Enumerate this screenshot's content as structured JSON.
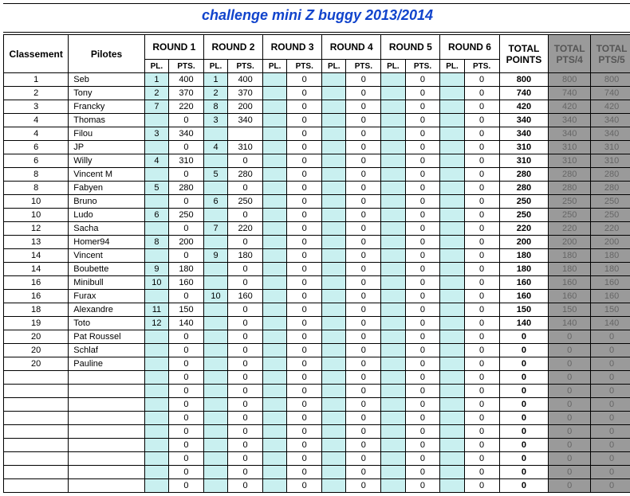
{
  "title": "challenge mini Z buggy 2013/2014",
  "headers": {
    "classement": "Classement",
    "pilotes": "Pilotes",
    "rounds": [
      "ROUND 1",
      "ROUND 2",
      "ROUND 3",
      "ROUND 4",
      "ROUND 5",
      "ROUND 6"
    ],
    "pl": "PL.",
    "pts": "PTS.",
    "total": "TOTAL POINTS",
    "grey1": "TOTAL PTS/4",
    "grey2": "TOTAL PTS/5"
  },
  "rows": [
    {
      "rank": "1",
      "pilot": "Seb",
      "r": [
        [
          "1",
          "400"
        ],
        [
          "1",
          "400"
        ],
        [
          "",
          "0"
        ],
        [
          "",
          "0"
        ],
        [
          "",
          "0"
        ],
        [
          "",
          "0"
        ]
      ],
      "total": "800",
      "g1": "800",
      "g2": "800"
    },
    {
      "rank": "2",
      "pilot": "Tony",
      "r": [
        [
          "2",
          "370"
        ],
        [
          "2",
          "370"
        ],
        [
          "",
          "0"
        ],
        [
          "",
          "0"
        ],
        [
          "",
          "0"
        ],
        [
          "",
          "0"
        ]
      ],
      "total": "740",
      "g1": "740",
      "g2": "740"
    },
    {
      "rank": "3",
      "pilot": "Francky",
      "r": [
        [
          "7",
          "220"
        ],
        [
          "8",
          "200"
        ],
        [
          "",
          "0"
        ],
        [
          "",
          "0"
        ],
        [
          "",
          "0"
        ],
        [
          "",
          "0"
        ]
      ],
      "total": "420",
      "g1": "420",
      "g2": "420"
    },
    {
      "rank": "4",
      "pilot": "Thomas",
      "r": [
        [
          "",
          "0"
        ],
        [
          "3",
          "340"
        ],
        [
          "",
          "0"
        ],
        [
          "",
          "0"
        ],
        [
          "",
          "0"
        ],
        [
          "",
          "0"
        ]
      ],
      "total": "340",
      "g1": "340",
      "g2": "340"
    },
    {
      "rank": "4",
      "pilot": "Filou",
      "r": [
        [
          "3",
          "340"
        ],
        [
          "",
          ""
        ],
        [
          "",
          "0"
        ],
        [
          "",
          "0"
        ],
        [
          "",
          "0"
        ],
        [
          "",
          "0"
        ]
      ],
      "total": "340",
      "g1": "340",
      "g2": "340"
    },
    {
      "rank": "6",
      "pilot": "JP",
      "r": [
        [
          "",
          "0"
        ],
        [
          "4",
          "310"
        ],
        [
          "",
          "0"
        ],
        [
          "",
          "0"
        ],
        [
          "",
          "0"
        ],
        [
          "",
          "0"
        ]
      ],
      "total": "310",
      "g1": "310",
      "g2": "310"
    },
    {
      "rank": "6",
      "pilot": "Willy",
      "r": [
        [
          "4",
          "310"
        ],
        [
          "",
          "0"
        ],
        [
          "",
          "0"
        ],
        [
          "",
          "0"
        ],
        [
          "",
          "0"
        ],
        [
          "",
          "0"
        ]
      ],
      "total": "310",
      "g1": "310",
      "g2": "310"
    },
    {
      "rank": "8",
      "pilot": "Vincent M",
      "r": [
        [
          "",
          "0"
        ],
        [
          "5",
          "280"
        ],
        [
          "",
          "0"
        ],
        [
          "",
          "0"
        ],
        [
          "",
          "0"
        ],
        [
          "",
          "0"
        ]
      ],
      "total": "280",
      "g1": "280",
      "g2": "280"
    },
    {
      "rank": "8",
      "pilot": "Fabyen",
      "r": [
        [
          "5",
          "280"
        ],
        [
          "",
          "0"
        ],
        [
          "",
          "0"
        ],
        [
          "",
          "0"
        ],
        [
          "",
          "0"
        ],
        [
          "",
          "0"
        ]
      ],
      "total": "280",
      "g1": "280",
      "g2": "280"
    },
    {
      "rank": "10",
      "pilot": "Bruno",
      "r": [
        [
          "",
          "0"
        ],
        [
          "6",
          "250"
        ],
        [
          "",
          "0"
        ],
        [
          "",
          "0"
        ],
        [
          "",
          "0"
        ],
        [
          "",
          "0"
        ]
      ],
      "total": "250",
      "g1": "250",
      "g2": "250"
    },
    {
      "rank": "10",
      "pilot": "Ludo",
      "r": [
        [
          "6",
          "250"
        ],
        [
          "",
          "0"
        ],
        [
          "",
          "0"
        ],
        [
          "",
          "0"
        ],
        [
          "",
          "0"
        ],
        [
          "",
          "0"
        ]
      ],
      "total": "250",
      "g1": "250",
      "g2": "250"
    },
    {
      "rank": "12",
      "pilot": "Sacha",
      "r": [
        [
          "",
          "0"
        ],
        [
          "7",
          "220"
        ],
        [
          "",
          "0"
        ],
        [
          "",
          "0"
        ],
        [
          "",
          "0"
        ],
        [
          "",
          "0"
        ]
      ],
      "total": "220",
      "g1": "220",
      "g2": "220"
    },
    {
      "rank": "13",
      "pilot": "Homer94",
      "r": [
        [
          "8",
          "200"
        ],
        [
          "",
          "0"
        ],
        [
          "",
          "0"
        ],
        [
          "",
          "0"
        ],
        [
          "",
          "0"
        ],
        [
          "",
          "0"
        ]
      ],
      "total": "200",
      "g1": "200",
      "g2": "200"
    },
    {
      "rank": "14",
      "pilot": "Vincent",
      "r": [
        [
          "",
          "0"
        ],
        [
          "9",
          "180"
        ],
        [
          "",
          "0"
        ],
        [
          "",
          "0"
        ],
        [
          "",
          "0"
        ],
        [
          "",
          "0"
        ]
      ],
      "total": "180",
      "g1": "180",
      "g2": "180"
    },
    {
      "rank": "14",
      "pilot": "Boubette",
      "r": [
        [
          "9",
          "180"
        ],
        [
          "",
          "0"
        ],
        [
          "",
          "0"
        ],
        [
          "",
          "0"
        ],
        [
          "",
          "0"
        ],
        [
          "",
          "0"
        ]
      ],
      "total": "180",
      "g1": "180",
      "g2": "180"
    },
    {
      "rank": "16",
      "pilot": "Minibull",
      "r": [
        [
          "10",
          "160"
        ],
        [
          "",
          "0"
        ],
        [
          "",
          "0"
        ],
        [
          "",
          "0"
        ],
        [
          "",
          "0"
        ],
        [
          "",
          "0"
        ]
      ],
      "total": "160",
      "g1": "160",
      "g2": "160"
    },
    {
      "rank": "16",
      "pilot": "Furax",
      "r": [
        [
          "",
          "0"
        ],
        [
          "10",
          "160"
        ],
        [
          "",
          "0"
        ],
        [
          "",
          "0"
        ],
        [
          "",
          "0"
        ],
        [
          "",
          "0"
        ]
      ],
      "total": "160",
      "g1": "160",
      "g2": "160"
    },
    {
      "rank": "18",
      "pilot": "Alexandre",
      "r": [
        [
          "11",
          "150"
        ],
        [
          "",
          "0"
        ],
        [
          "",
          "0"
        ],
        [
          "",
          "0"
        ],
        [
          "",
          "0"
        ],
        [
          "",
          "0"
        ]
      ],
      "total": "150",
      "g1": "150",
      "g2": "150"
    },
    {
      "rank": "19",
      "pilot": "Toto",
      "r": [
        [
          "12",
          "140"
        ],
        [
          "",
          "0"
        ],
        [
          "",
          "0"
        ],
        [
          "",
          "0"
        ],
        [
          "",
          "0"
        ],
        [
          "",
          "0"
        ]
      ],
      "total": "140",
      "g1": "140",
      "g2": "140"
    },
    {
      "rank": "20",
      "pilot": "Pat Roussel",
      "r": [
        [
          "",
          "0"
        ],
        [
          "",
          "0"
        ],
        [
          "",
          "0"
        ],
        [
          "",
          "0"
        ],
        [
          "",
          "0"
        ],
        [
          "",
          "0"
        ]
      ],
      "total": "0",
      "g1": "0",
      "g2": "0"
    },
    {
      "rank": "20",
      "pilot": "Schlaf",
      "r": [
        [
          "",
          "0"
        ],
        [
          "",
          "0"
        ],
        [
          "",
          "0"
        ],
        [
          "",
          "0"
        ],
        [
          "",
          "0"
        ],
        [
          "",
          "0"
        ]
      ],
      "total": "0",
      "g1": "0",
      "g2": "0"
    },
    {
      "rank": "20",
      "pilot": "Pauline",
      "r": [
        [
          "",
          "0"
        ],
        [
          "",
          "0"
        ],
        [
          "",
          "0"
        ],
        [
          "",
          "0"
        ],
        [
          "",
          "0"
        ],
        [
          "",
          "0"
        ]
      ],
      "total": "0",
      "g1": "0",
      "g2": "0"
    },
    {
      "rank": "",
      "pilot": "",
      "r": [
        [
          "",
          "0"
        ],
        [
          "",
          "0"
        ],
        [
          "",
          "0"
        ],
        [
          "",
          "0"
        ],
        [
          "",
          "0"
        ],
        [
          "",
          "0"
        ]
      ],
      "total": "0",
      "g1": "0",
      "g2": "0"
    },
    {
      "rank": "",
      "pilot": "",
      "r": [
        [
          "",
          "0"
        ],
        [
          "",
          "0"
        ],
        [
          "",
          "0"
        ],
        [
          "",
          "0"
        ],
        [
          "",
          "0"
        ],
        [
          "",
          "0"
        ]
      ],
      "total": "0",
      "g1": "0",
      "g2": "0"
    },
    {
      "rank": "",
      "pilot": "",
      "r": [
        [
          "",
          "0"
        ],
        [
          "",
          "0"
        ],
        [
          "",
          "0"
        ],
        [
          "",
          "0"
        ],
        [
          "",
          "0"
        ],
        [
          "",
          "0"
        ]
      ],
      "total": "0",
      "g1": "0",
      "g2": "0"
    },
    {
      "rank": "",
      "pilot": "",
      "r": [
        [
          "",
          "0"
        ],
        [
          "",
          "0"
        ],
        [
          "",
          "0"
        ],
        [
          "",
          "0"
        ],
        [
          "",
          "0"
        ],
        [
          "",
          "0"
        ]
      ],
      "total": "0",
      "g1": "0",
      "g2": "0"
    },
    {
      "rank": "",
      "pilot": "",
      "r": [
        [
          "",
          "0"
        ],
        [
          "",
          "0"
        ],
        [
          "",
          "0"
        ],
        [
          "",
          "0"
        ],
        [
          "",
          "0"
        ],
        [
          "",
          "0"
        ]
      ],
      "total": "0",
      "g1": "0",
      "g2": "0"
    },
    {
      "rank": "",
      "pilot": "",
      "r": [
        [
          "",
          "0"
        ],
        [
          "",
          "0"
        ],
        [
          "",
          "0"
        ],
        [
          "",
          "0"
        ],
        [
          "",
          "0"
        ],
        [
          "",
          "0"
        ]
      ],
      "total": "0",
      "g1": "0",
      "g2": "0"
    },
    {
      "rank": "",
      "pilot": "",
      "r": [
        [
          "",
          "0"
        ],
        [
          "",
          "0"
        ],
        [
          "",
          "0"
        ],
        [
          "",
          "0"
        ],
        [
          "",
          "0"
        ],
        [
          "",
          "0"
        ]
      ],
      "total": "0",
      "g1": "0",
      "g2": "0"
    },
    {
      "rank": "",
      "pilot": "",
      "r": [
        [
          "",
          "0"
        ],
        [
          "",
          "0"
        ],
        [
          "",
          "0"
        ],
        [
          "",
          "0"
        ],
        [
          "",
          "0"
        ],
        [
          "",
          "0"
        ]
      ],
      "total": "0",
      "g1": "0",
      "g2": "0"
    },
    {
      "rank": "",
      "pilot": "",
      "r": [
        [
          "",
          "0"
        ],
        [
          "",
          "0"
        ],
        [
          "",
          "0"
        ],
        [
          "",
          "0"
        ],
        [
          "",
          "0"
        ],
        [
          "",
          "0"
        ]
      ],
      "total": "0",
      "g1": "0",
      "g2": "0"
    }
  ]
}
